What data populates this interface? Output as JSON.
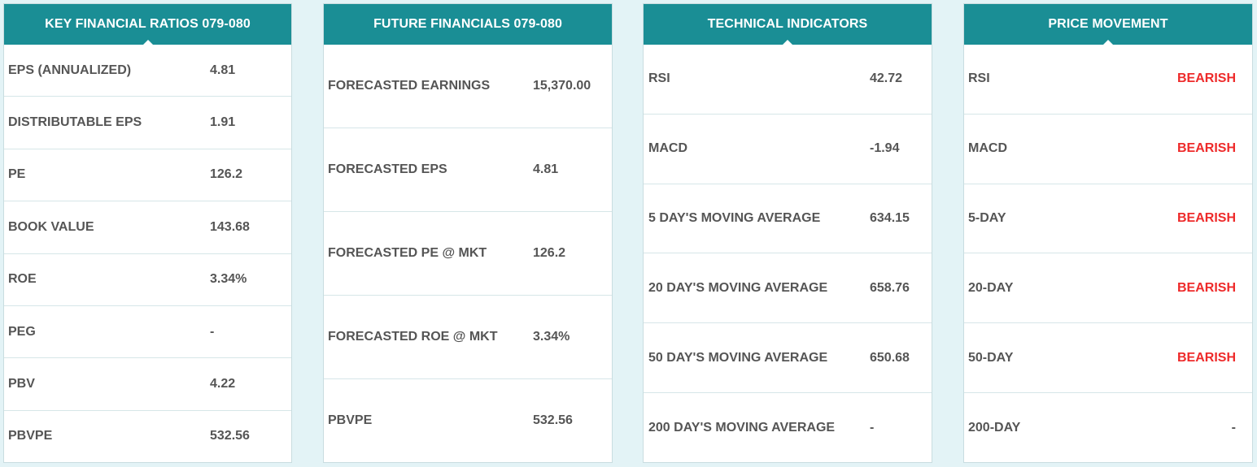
{
  "colors": {
    "header_bg": "#1a8e95",
    "page_bg": "#e3f3f6",
    "text": "#555555",
    "bearish": "#ee2a2a"
  },
  "key_financial_ratios": {
    "title": "KEY FINANCIAL RATIOS 079-080",
    "rows": [
      {
        "label": "EPS (ANNUALIZED)",
        "value": "4.81"
      },
      {
        "label": "DISTRIBUTABLE EPS",
        "value": "1.91"
      },
      {
        "label": "PE",
        "value": "126.2"
      },
      {
        "label": "BOOK VALUE",
        "value": "143.68"
      },
      {
        "label": "ROE",
        "value": "3.34%"
      },
      {
        "label": "PEG",
        "value": "-"
      },
      {
        "label": "PBV",
        "value": "4.22"
      },
      {
        "label": "PBVPE",
        "value": "532.56"
      }
    ]
  },
  "future_financials": {
    "title": "FUTURE FINANCIALS 079-080",
    "rows": [
      {
        "label": "FORECASTED EARNINGS",
        "value": "15,370.00"
      },
      {
        "label": "FORECASTED EPS",
        "value": "4.81"
      },
      {
        "label": "FORECASTED PE @ MKT",
        "value": "126.2"
      },
      {
        "label": "FORECASTED ROE @ MKT",
        "value": "3.34%"
      },
      {
        "label": "PBVPE",
        "value": "532.56"
      }
    ]
  },
  "technical_indicators": {
    "title": "TECHNICAL INDICATORS",
    "rows": [
      {
        "label": "RSI",
        "value": "42.72"
      },
      {
        "label": "MACD",
        "value": "-1.94"
      },
      {
        "label": "5 DAY'S MOVING AVERAGE",
        "value": "634.15"
      },
      {
        "label": "20 DAY'S MOVING AVERAGE",
        "value": "658.76"
      },
      {
        "label": "50 DAY'S MOVING AVERAGE",
        "value": "650.68"
      },
      {
        "label": "200 DAY'S MOVING AVERAGE",
        "value": "-"
      }
    ]
  },
  "price_movement": {
    "title": "PRICE MOVEMENT",
    "rows": [
      {
        "label": "RSI",
        "value": "BEARISH"
      },
      {
        "label": "MACD",
        "value": "BEARISH"
      },
      {
        "label": "5-DAY",
        "value": "BEARISH"
      },
      {
        "label": "20-DAY",
        "value": "BEARISH"
      },
      {
        "label": "50-DAY",
        "value": "BEARISH"
      },
      {
        "label": "200-DAY",
        "value": "-"
      }
    ]
  }
}
